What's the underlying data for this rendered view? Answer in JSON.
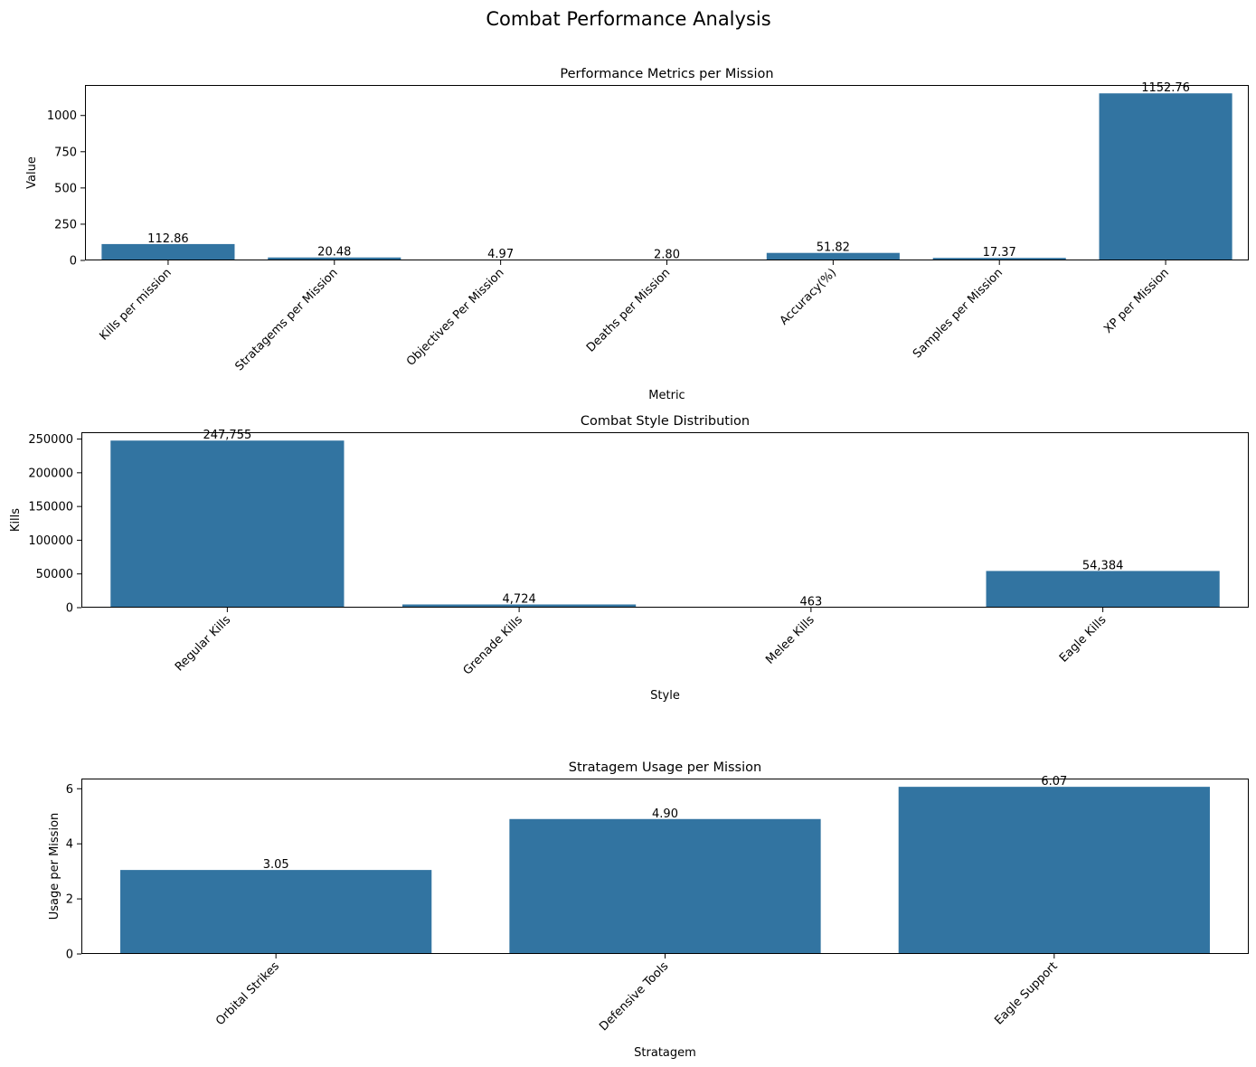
{
  "figure_title": "Combat Performance Analysis",
  "colors": {
    "bar": "#3274a1",
    "text": "#000000",
    "background": "#ffffff"
  },
  "chart_data": [
    {
      "type": "bar",
      "title": "Performance Metrics per Mission",
      "xlabel": "Metric",
      "ylabel": "Value",
      "categories": [
        "Kills per mission",
        "Stratagems per Mission",
        "Objectives Per Mission",
        "Deaths per Mission",
        "Accuracy(%)",
        "Samples per Mission",
        "XP per Mission"
      ],
      "values": [
        112.86,
        20.48,
        4.97,
        2.8,
        51.82,
        17.37,
        1152.76
      ],
      "data_labels": [
        "112.86",
        "20.48",
        "4.97",
        "2.80",
        "51.82",
        "17.37",
        "1152.76"
      ],
      "yticks": [
        0,
        250,
        500,
        750,
        1000
      ],
      "ytick_labels": [
        "0",
        "250",
        "500",
        "750",
        "1000"
      ],
      "ylim": [
        0,
        1210.4
      ],
      "grid": false,
      "tick_rotation": 45
    },
    {
      "type": "bar",
      "title": "Combat Style Distribution",
      "xlabel": "Style",
      "ylabel": "Kills",
      "categories": [
        "Regular Kills",
        "Grenade Kills",
        "Melee Kills",
        "Eagle Kills"
      ],
      "values": [
        247755,
        4724,
        463,
        54384
      ],
      "data_labels": [
        "247,755",
        "4,724",
        "463",
        "54,384"
      ],
      "yticks": [
        0,
        50000,
        100000,
        150000,
        200000,
        250000
      ],
      "ytick_labels": [
        "0",
        "50000",
        "100000",
        "150000",
        "200000",
        "250000"
      ],
      "ylim": [
        0,
        260143
      ],
      "grid": false,
      "tick_rotation": 45
    },
    {
      "type": "bar",
      "title": "Stratagem Usage per Mission",
      "xlabel": "Stratagem",
      "ylabel": "Usage per Mission",
      "categories": [
        "Orbital Strikes",
        "Defensive Tools",
        "Eagle Support"
      ],
      "values": [
        3.05,
        4.9,
        6.07
      ],
      "data_labels": [
        "3.05",
        "4.90",
        "6.07"
      ],
      "yticks": [
        0,
        2,
        4,
        6
      ],
      "ytick_labels": [
        "0",
        "2",
        "4",
        "6"
      ],
      "ylim": [
        0,
        6.37
      ],
      "grid": false,
      "tick_rotation": 45
    }
  ]
}
